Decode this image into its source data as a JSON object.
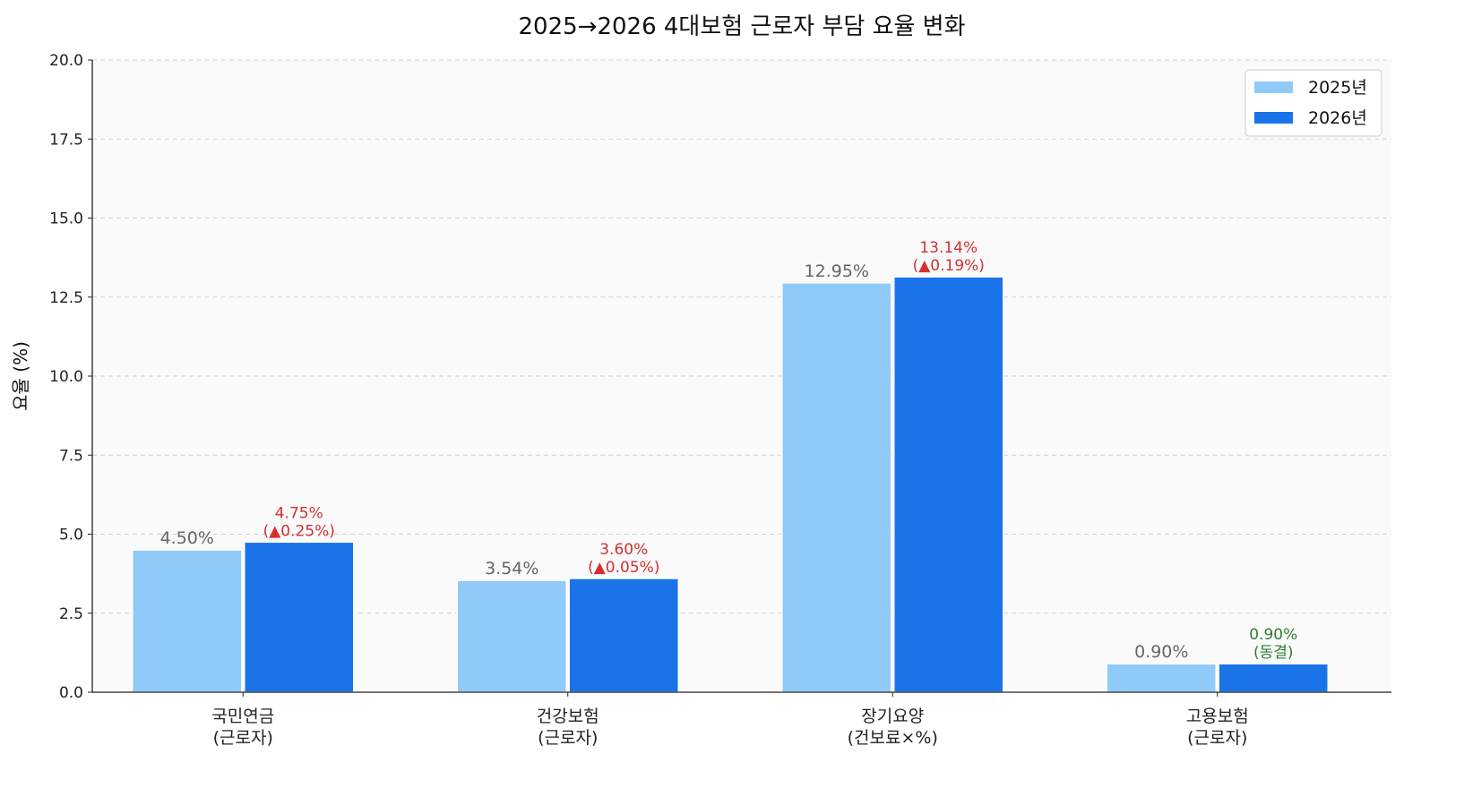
{
  "chart_data": {
    "type": "bar",
    "title": "2025→2026 4대보험 근로자 부담 요율 변화",
    "xlabel": "",
    "ylabel": "요율 (%)",
    "ylim": [
      0,
      20
    ],
    "yticks": [
      "0.0",
      "2.5",
      "5.0",
      "7.5",
      "10.0",
      "12.5",
      "15.0",
      "17.5",
      "20.0"
    ],
    "grid": true,
    "legend_position": "top-right",
    "categories": [
      "국민연금\n(근로자)",
      "건강보험\n(근로자)",
      "장기요양\n(건보료×%)",
      "고용보험\n(근로자)"
    ],
    "series": [
      {
        "name": "2025년",
        "color": "#90CAF9",
        "values": [
          4.5,
          3.54,
          12.95,
          0.9
        ],
        "labels": [
          "4.50%",
          "3.54%",
          "12.95%",
          "0.90%"
        ]
      },
      {
        "name": "2026년",
        "color": "#1A73E8",
        "values": [
          4.75,
          3.6,
          13.14,
          0.9
        ],
        "labels": [
          "4.75%\n(▲0.25%)",
          "3.60%\n(▲0.05%)",
          "13.14%\n(▲0.19%)",
          "0.90%\n(동결)"
        ]
      }
    ],
    "label_colors": {
      "base": "#666666",
      "increase": "#D32F2F",
      "frozen": "#2E7D32"
    },
    "label_status": [
      "increase",
      "increase",
      "increase",
      "frozen"
    ]
  }
}
